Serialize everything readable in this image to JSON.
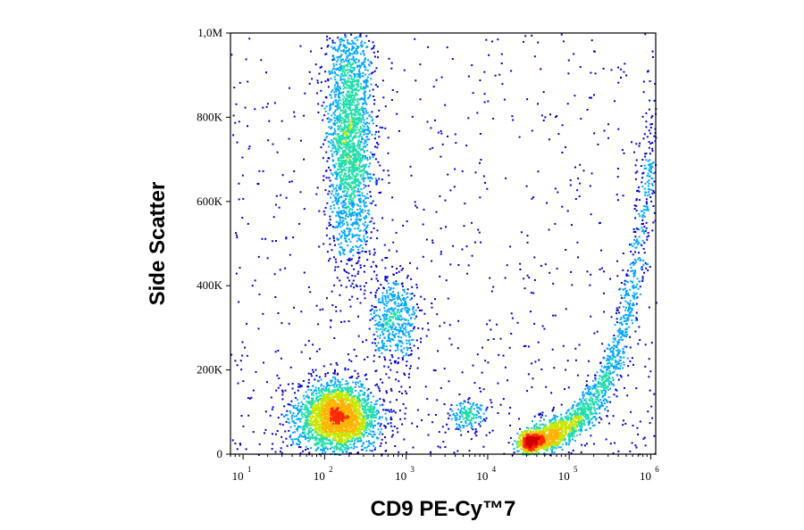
{
  "chart_data": {
    "type": "scatter",
    "subtype": "flow-cytometry-density-dot-plot",
    "title": "",
    "xlabel": "CD9 PE-Cy™7",
    "ylabel": "Side Scatter",
    "x_scale": "log",
    "xlim": [
      7,
      1150000
    ],
    "ylim": [
      0,
      1000000
    ],
    "x_ticks": [
      {
        "value": 10,
        "base": "10",
        "exp": "1"
      },
      {
        "value": 100,
        "base": "10",
        "exp": "2"
      },
      {
        "value": 1000,
        "base": "10",
        "exp": "3"
      },
      {
        "value": 10000,
        "base": "10",
        "exp": "4"
      },
      {
        "value": 100000,
        "base": "10",
        "exp": "5"
      },
      {
        "value": 1000000,
        "base": "10",
        "exp": "6"
      }
    ],
    "y_ticks": [
      {
        "value": 0,
        "label": "0"
      },
      {
        "value": 200000,
        "label": "200K"
      },
      {
        "value": 400000,
        "label": "400K"
      },
      {
        "value": 600000,
        "label": "600K"
      },
      {
        "value": 800000,
        "label": "800K"
      },
      {
        "value": 1000000,
        "label": "1,0M"
      }
    ],
    "density_colormap": [
      "#0000cc",
      "#00a6ff",
      "#22ddaa",
      "#c8e600",
      "#ffb400",
      "#ff2a00",
      "#d00000"
    ],
    "grid": false,
    "legend": "none",
    "populations": [
      {
        "x_log10_center": 2.15,
        "y_center": 90000,
        "x_log10_sd": 0.25,
        "y_sd": 40000,
        "peak_density": 1.0,
        "events": 2600
      },
      {
        "x_log10_center": 2.3,
        "y_center": 760000,
        "x_log10_sd": 0.14,
        "y_sd": 150000,
        "peak_density": 0.55,
        "events": 2200
      },
      {
        "x_log10_center": 2.85,
        "y_center": 320000,
        "x_log10_sd": 0.14,
        "y_sd": 55000,
        "peak_density": 0.3,
        "events": 500
      },
      {
        "x_log10_center": 3.75,
        "y_center": 95000,
        "x_log10_sd": 0.12,
        "y_sd": 18000,
        "peak_density": 0.2,
        "events": 150
      },
      {
        "x_log10_center": 4.9,
        "y_center": 60000,
        "x_log10_sd": 0.22,
        "y_sd": 25000,
        "peak_density": 1.0,
        "events": 2200,
        "trend": "y rises exponentially toward 800K as x approaches 10^6"
      }
    ]
  }
}
